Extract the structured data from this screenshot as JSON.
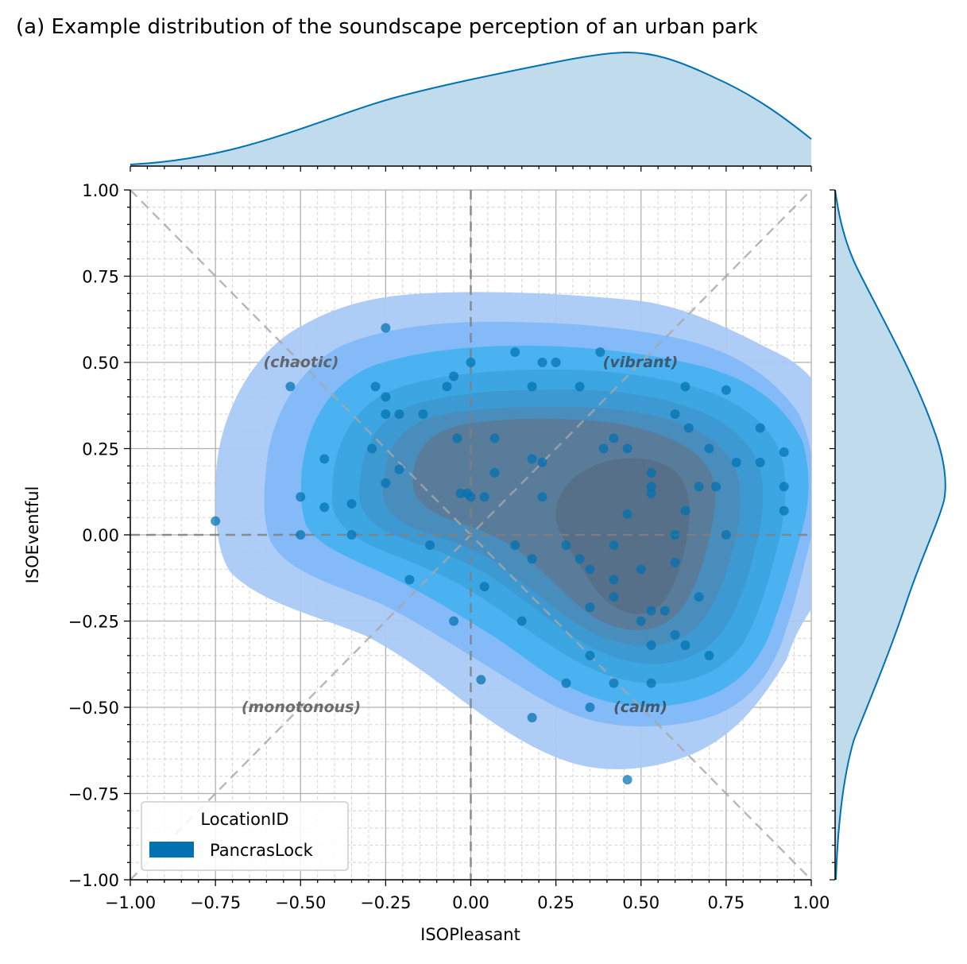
{
  "chart_data": {
    "type": "scatter",
    "title": "(a) Example distribution of the soundscape perception of an urban park",
    "xlabel": "ISOPleasant",
    "ylabel": "ISOEventful",
    "xlim": [
      -1.0,
      1.0
    ],
    "ylim": [
      -1.0,
      1.0
    ],
    "x_ticks": [
      "−1.00",
      "−0.75",
      "−0.50",
      "−0.25",
      "0.00",
      "0.25",
      "0.50",
      "0.75",
      "1.00"
    ],
    "y_ticks": [
      "1.00",
      "0.75",
      "0.50",
      "0.25",
      "0.00",
      "−0.25",
      "−0.50",
      "−0.75",
      "−1.00"
    ],
    "grid": true,
    "legend": {
      "title": "LocationID",
      "entries": [
        "PancrasLock"
      ],
      "position": "lower-left"
    },
    "annotations": [
      "(chaotic)",
      "(vibrant)",
      "(monotonous)",
      "(calm)"
    ],
    "marginals": [
      "kde-top",
      "kde-right"
    ],
    "colors": {
      "point": "#0072b2",
      "kde_line": "#0072b2",
      "kde_fill": "#bfdbec",
      "contour_light": "#a9c9f5",
      "contour_mid": "#45b1f0",
      "contour_dark": "#5a7a95"
    },
    "series": [
      {
        "name": "PancrasLock",
        "points": [
          [
            -0.75,
            0.04
          ],
          [
            -0.53,
            0.43
          ],
          [
            -0.5,
            0.11
          ],
          [
            -0.5,
            0.0
          ],
          [
            -0.43,
            0.22
          ],
          [
            -0.43,
            0.08
          ],
          [
            -0.35,
            0.09
          ],
          [
            -0.35,
            0.0
          ],
          [
            -0.29,
            0.25
          ],
          [
            -0.28,
            0.43
          ],
          [
            -0.25,
            0.6
          ],
          [
            -0.25,
            0.4
          ],
          [
            -0.25,
            0.35
          ],
          [
            -0.25,
            0.15
          ],
          [
            -0.21,
            0.35
          ],
          [
            -0.21,
            0.19
          ],
          [
            -0.18,
            -0.13
          ],
          [
            -0.14,
            0.35
          ],
          [
            -0.12,
            -0.03
          ],
          [
            -0.07,
            0.43
          ],
          [
            -0.05,
            0.46
          ],
          [
            -0.05,
            -0.25
          ],
          [
            -0.04,
            0.28
          ],
          [
            -0.03,
            0.12
          ],
          [
            -0.01,
            0.12
          ],
          [
            0.0,
            0.5
          ],
          [
            0.0,
            0.11
          ],
          [
            0.03,
            -0.42
          ],
          [
            0.04,
            0.11
          ],
          [
            0.04,
            -0.15
          ],
          [
            0.07,
            0.28
          ],
          [
            0.07,
            0.18
          ],
          [
            0.13,
            0.53
          ],
          [
            0.13,
            -0.03
          ],
          [
            0.15,
            -0.25
          ],
          [
            0.18,
            0.43
          ],
          [
            0.18,
            0.22
          ],
          [
            0.18,
            -0.07
          ],
          [
            0.18,
            -0.53
          ],
          [
            0.21,
            0.5
          ],
          [
            0.21,
            0.21
          ],
          [
            0.21,
            0.11
          ],
          [
            0.25,
            0.5
          ],
          [
            0.28,
            -0.03
          ],
          [
            0.28,
            -0.43
          ],
          [
            0.32,
            0.43
          ],
          [
            0.32,
            -0.07
          ],
          [
            0.35,
            -0.1
          ],
          [
            0.35,
            -0.21
          ],
          [
            0.35,
            -0.35
          ],
          [
            0.35,
            -0.5
          ],
          [
            0.38,
            0.53
          ],
          [
            0.39,
            0.25
          ],
          [
            0.42,
            0.28
          ],
          [
            0.42,
            -0.03
          ],
          [
            0.42,
            -0.13
          ],
          [
            0.42,
            -0.18
          ],
          [
            0.42,
            -0.43
          ],
          [
            0.46,
            0.25
          ],
          [
            0.46,
            0.06
          ],
          [
            0.46,
            -0.71
          ],
          [
            0.5,
            -0.1
          ],
          [
            0.5,
            -0.25
          ],
          [
            0.53,
            0.18
          ],
          [
            0.53,
            0.14
          ],
          [
            0.53,
            0.12
          ],
          [
            0.53,
            -0.22
          ],
          [
            0.53,
            -0.32
          ],
          [
            0.53,
            -0.43
          ],
          [
            0.57,
            -0.22
          ],
          [
            0.6,
            0.35
          ],
          [
            0.6,
            0.0
          ],
          [
            0.6,
            -0.08
          ],
          [
            0.6,
            -0.29
          ],
          [
            0.63,
            0.43
          ],
          [
            0.63,
            0.07
          ],
          [
            0.63,
            -0.32
          ],
          [
            0.64,
            0.31
          ],
          [
            0.67,
            0.14
          ],
          [
            0.67,
            -0.18
          ],
          [
            0.7,
            0.25
          ],
          [
            0.7,
            -0.35
          ],
          [
            0.72,
            0.14
          ],
          [
            0.75,
            0.42
          ],
          [
            0.75,
            0.0
          ],
          [
            0.78,
            0.21
          ],
          [
            0.85,
            0.31
          ],
          [
            0.85,
            0.21
          ],
          [
            0.92,
            0.24
          ],
          [
            0.92,
            0.14
          ],
          [
            0.92,
            0.07
          ]
        ]
      }
    ]
  }
}
